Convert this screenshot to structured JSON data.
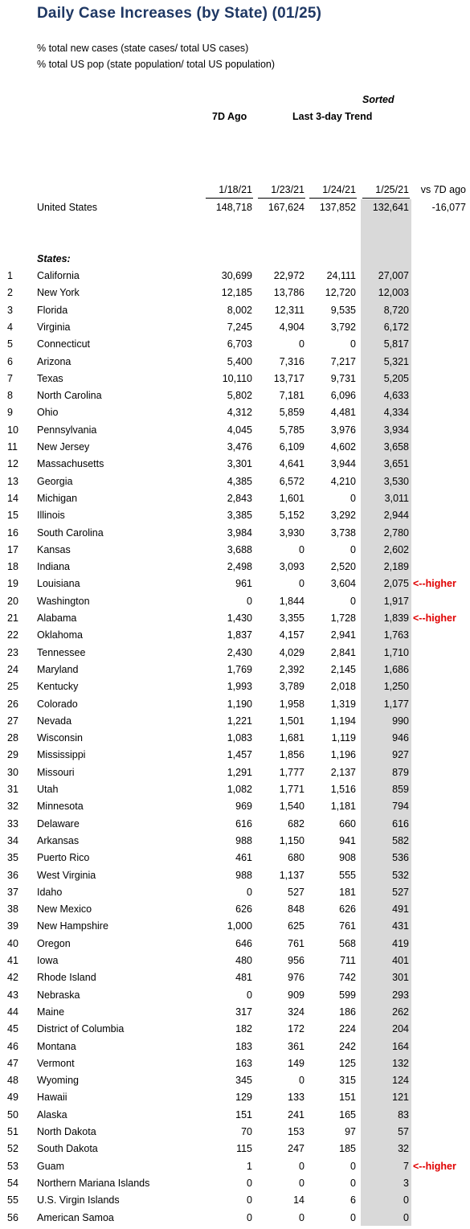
{
  "title": "Daily Case Increases (by State) (01/25)",
  "notes": [
    "% total new cases (state cases/ total US cases)",
    "% total US pop (state population/ total US population)"
  ],
  "headers": {
    "sorted": "Sorted",
    "seven_days_ago": "7D Ago",
    "trend": "Last 3-day Trend",
    "dates": [
      "1/18/21",
      "1/23/21",
      "1/24/21",
      "1/25/21"
    ],
    "vs_7d": "vs 7D ago"
  },
  "united_states": {
    "label": "United States",
    "values": [
      "148,718",
      "167,624",
      "137,852",
      "132,641"
    ],
    "vs_7d": "-16,077"
  },
  "states_label": "States:",
  "rows": [
    {
      "num": "1",
      "name": "California",
      "v": [
        "30,699",
        "22,972",
        "24,111",
        "27,007"
      ],
      "flag": ""
    },
    {
      "num": "2",
      "name": "New York",
      "v": [
        "12,185",
        "13,786",
        "12,720",
        "12,003"
      ],
      "flag": ""
    },
    {
      "num": "3",
      "name": "Florida",
      "v": [
        "8,002",
        "12,311",
        "9,535",
        "8,720"
      ],
      "flag": ""
    },
    {
      "num": "4",
      "name": "Virginia",
      "v": [
        "7,245",
        "4,904",
        "3,792",
        "6,172"
      ],
      "flag": ""
    },
    {
      "num": "5",
      "name": "Connecticut",
      "v": [
        "6,703",
        "0",
        "0",
        "5,817"
      ],
      "flag": ""
    },
    {
      "num": "6",
      "name": "Arizona",
      "v": [
        "5,400",
        "7,316",
        "7,217",
        "5,321"
      ],
      "flag": ""
    },
    {
      "num": "7",
      "name": "Texas",
      "v": [
        "10,110",
        "13,717",
        "9,731",
        "5,205"
      ],
      "flag": ""
    },
    {
      "num": "8",
      "name": "North Carolina",
      "v": [
        "5,802",
        "7,181",
        "6,096",
        "4,633"
      ],
      "flag": ""
    },
    {
      "num": "9",
      "name": "Ohio",
      "v": [
        "4,312",
        "5,859",
        "4,481",
        "4,334"
      ],
      "flag": ""
    },
    {
      "num": "10",
      "name": "Pennsylvania",
      "v": [
        "4,045",
        "5,785",
        "3,976",
        "3,934"
      ],
      "flag": ""
    },
    {
      "num": "11",
      "name": "New Jersey",
      "v": [
        "3,476",
        "6,109",
        "4,602",
        "3,658"
      ],
      "flag": ""
    },
    {
      "num": "12",
      "name": "Massachusetts",
      "v": [
        "3,301",
        "4,641",
        "3,944",
        "3,651"
      ],
      "flag": ""
    },
    {
      "num": "13",
      "name": "Georgia",
      "v": [
        "4,385",
        "6,572",
        "4,210",
        "3,530"
      ],
      "flag": ""
    },
    {
      "num": "14",
      "name": "Michigan",
      "v": [
        "2,843",
        "1,601",
        "0",
        "3,011"
      ],
      "flag": ""
    },
    {
      "num": "15",
      "name": "Illinois",
      "v": [
        "3,385",
        "5,152",
        "3,292",
        "2,944"
      ],
      "flag": ""
    },
    {
      "num": "16",
      "name": "South Carolina",
      "v": [
        "3,984",
        "3,930",
        "3,738",
        "2,780"
      ],
      "flag": ""
    },
    {
      "num": "17",
      "name": "Kansas",
      "v": [
        "3,688",
        "0",
        "0",
        "2,602"
      ],
      "flag": ""
    },
    {
      "num": "18",
      "name": "Indiana",
      "v": [
        "2,498",
        "3,093",
        "2,520",
        "2,189"
      ],
      "flag": ""
    },
    {
      "num": "19",
      "name": "Louisiana",
      "v": [
        "961",
        "0",
        "3,604",
        "2,075"
      ],
      "flag": "<--higher"
    },
    {
      "num": "20",
      "name": "Washington",
      "v": [
        "0",
        "1,844",
        "0",
        "1,917"
      ],
      "flag": ""
    },
    {
      "num": "21",
      "name": "Alabama",
      "v": [
        "1,430",
        "3,355",
        "1,728",
        "1,839"
      ],
      "flag": "<--higher"
    },
    {
      "num": "22",
      "name": "Oklahoma",
      "v": [
        "1,837",
        "4,157",
        "2,941",
        "1,763"
      ],
      "flag": ""
    },
    {
      "num": "23",
      "name": "Tennessee",
      "v": [
        "2,430",
        "4,029",
        "2,841",
        "1,710"
      ],
      "flag": ""
    },
    {
      "num": "24",
      "name": "Maryland",
      "v": [
        "1,769",
        "2,392",
        "2,145",
        "1,686"
      ],
      "flag": ""
    },
    {
      "num": "25",
      "name": "Kentucky",
      "v": [
        "1,993",
        "3,789",
        "2,018",
        "1,250"
      ],
      "flag": ""
    },
    {
      "num": "26",
      "name": "Colorado",
      "v": [
        "1,190",
        "1,958",
        "1,319",
        "1,177"
      ],
      "flag": ""
    },
    {
      "num": "27",
      "name": "Nevada",
      "v": [
        "1,221",
        "1,501",
        "1,194",
        "990"
      ],
      "flag": ""
    },
    {
      "num": "28",
      "name": "Wisconsin",
      "v": [
        "1,083",
        "1,681",
        "1,119",
        "946"
      ],
      "flag": ""
    },
    {
      "num": "29",
      "name": "Mississippi",
      "v": [
        "1,457",
        "1,856",
        "1,196",
        "927"
      ],
      "flag": ""
    },
    {
      "num": "30",
      "name": "Missouri",
      "v": [
        "1,291",
        "1,777",
        "2,137",
        "879"
      ],
      "flag": ""
    },
    {
      "num": "31",
      "name": "Utah",
      "v": [
        "1,082",
        "1,771",
        "1,516",
        "859"
      ],
      "flag": ""
    },
    {
      "num": "32",
      "name": "Minnesota",
      "v": [
        "969",
        "1,540",
        "1,181",
        "794"
      ],
      "flag": ""
    },
    {
      "num": "33",
      "name": "Delaware",
      "v": [
        "616",
        "682",
        "660",
        "616"
      ],
      "flag": ""
    },
    {
      "num": "34",
      "name": "Arkansas",
      "v": [
        "988",
        "1,150",
        "941",
        "582"
      ],
      "flag": ""
    },
    {
      "num": "35",
      "name": "Puerto Rico",
      "v": [
        "461",
        "680",
        "908",
        "536"
      ],
      "flag": ""
    },
    {
      "num": "36",
      "name": "West Virginia",
      "v": [
        "988",
        "1,137",
        "555",
        "532"
      ],
      "flag": ""
    },
    {
      "num": "37",
      "name": "Idaho",
      "v": [
        "0",
        "527",
        "181",
        "527"
      ],
      "flag": ""
    },
    {
      "num": "38",
      "name": "New Mexico",
      "v": [
        "626",
        "848",
        "626",
        "491"
      ],
      "flag": ""
    },
    {
      "num": "39",
      "name": "New Hampshire",
      "v": [
        "1,000",
        "625",
        "761",
        "431"
      ],
      "flag": ""
    },
    {
      "num": "40",
      "name": "Oregon",
      "v": [
        "646",
        "761",
        "568",
        "419"
      ],
      "flag": ""
    },
    {
      "num": "41",
      "name": "Iowa",
      "v": [
        "480",
        "956",
        "711",
        "401"
      ],
      "flag": ""
    },
    {
      "num": "42",
      "name": "Rhode Island",
      "v": [
        "481",
        "976",
        "742",
        "301"
      ],
      "flag": ""
    },
    {
      "num": "43",
      "name": "Nebraska",
      "v": [
        "0",
        "909",
        "599",
        "293"
      ],
      "flag": ""
    },
    {
      "num": "44",
      "name": "Maine",
      "v": [
        "317",
        "324",
        "186",
        "262"
      ],
      "flag": ""
    },
    {
      "num": "45",
      "name": "District of Columbia",
      "v": [
        "182",
        "172",
        "224",
        "204"
      ],
      "flag": ""
    },
    {
      "num": "46",
      "name": "Montana",
      "v": [
        "183",
        "361",
        "242",
        "164"
      ],
      "flag": ""
    },
    {
      "num": "47",
      "name": "Vermont",
      "v": [
        "163",
        "149",
        "125",
        "132"
      ],
      "flag": ""
    },
    {
      "num": "48",
      "name": "Wyoming",
      "v": [
        "345",
        "0",
        "315",
        "124"
      ],
      "flag": ""
    },
    {
      "num": "49",
      "name": "Hawaii",
      "v": [
        "129",
        "133",
        "151",
        "121"
      ],
      "flag": ""
    },
    {
      "num": "50",
      "name": "Alaska",
      "v": [
        "151",
        "241",
        "165",
        "83"
      ],
      "flag": ""
    },
    {
      "num": "51",
      "name": "North Dakota",
      "v": [
        "70",
        "153",
        "97",
        "57"
      ],
      "flag": ""
    },
    {
      "num": "52",
      "name": "South Dakota",
      "v": [
        "115",
        "247",
        "185",
        "32"
      ],
      "flag": ""
    },
    {
      "num": "53",
      "name": "Guam",
      "v": [
        "1",
        "0",
        "0",
        "7"
      ],
      "flag": "<--higher"
    },
    {
      "num": "54",
      "name": "Northern Mariana Islands",
      "v": [
        "0",
        "0",
        "0",
        "3"
      ],
      "flag": ""
    },
    {
      "num": "55",
      "name": "U.S. Virgin Islands",
      "v": [
        "0",
        "14",
        "6",
        "0"
      ],
      "flag": ""
    },
    {
      "num": "56",
      "name": "American Samoa",
      "v": [
        "0",
        "0",
        "0",
        "0"
      ],
      "flag": ""
    }
  ],
  "colors": {
    "title": "#1f3864",
    "highlight_column": "#d9d9d9",
    "flag": "#e00000"
  }
}
